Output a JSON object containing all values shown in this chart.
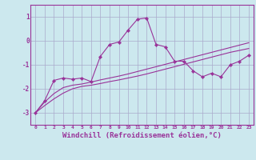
{
  "background_color": "#cce8ee",
  "grid_color": "#aaaacc",
  "line_color": "#993399",
  "xlabel": "Windchill (Refroidissement éolien,°C)",
  "xlabel_fontsize": 6.5,
  "xtick_labels": [
    "0",
    "1",
    "2",
    "3",
    "4",
    "5",
    "6",
    "7",
    "8",
    "9",
    "10",
    "11",
    "12",
    "13",
    "14",
    "15",
    "16",
    "17",
    "18",
    "19",
    "20",
    "21",
    "22",
    "23"
  ],
  "ytick_labels": [
    "1",
    "0",
    "-1",
    "-2",
    "-3"
  ],
  "ytick_values": [
    1,
    0,
    -1,
    -2,
    -3
  ],
  "ylim": [
    -3.5,
    1.5
  ],
  "xlim": [
    -0.5,
    23.5
  ],
  "line1_x": [
    0,
    1,
    2,
    3,
    4,
    5,
    6,
    7,
    8,
    9,
    10,
    11,
    12,
    13,
    14,
    15,
    16,
    17,
    18,
    19,
    20,
    21,
    22,
    23
  ],
  "line1_y": [
    -3.0,
    -2.5,
    -1.65,
    -1.55,
    -1.6,
    -1.55,
    -1.7,
    -0.65,
    -0.15,
    -0.05,
    0.45,
    0.9,
    0.95,
    -0.15,
    -0.25,
    -0.85,
    -0.85,
    -1.25,
    -1.5,
    -1.35,
    -1.5,
    -1.0,
    -0.85,
    -0.6
  ],
  "line2_x": [
    0,
    1,
    2,
    3,
    4,
    5,
    6,
    7,
    8,
    9,
    10,
    11,
    12,
    13,
    14,
    15,
    16,
    17,
    18,
    19,
    20,
    21,
    22,
    23
  ],
  "line2_y": [
    -3.0,
    -2.55,
    -2.2,
    -1.95,
    -1.85,
    -1.8,
    -1.72,
    -1.63,
    -1.55,
    -1.47,
    -1.38,
    -1.28,
    -1.18,
    -1.08,
    -0.98,
    -0.88,
    -0.78,
    -0.68,
    -0.58,
    -0.48,
    -0.38,
    -0.28,
    -0.18,
    -0.08
  ],
  "line3_x": [
    0,
    1,
    2,
    3,
    4,
    5,
    6,
    7,
    8,
    9,
    10,
    11,
    12,
    13,
    14,
    15,
    16,
    17,
    18,
    19,
    20,
    21,
    22,
    23
  ],
  "line3_y": [
    -3.0,
    -2.7,
    -2.42,
    -2.18,
    -2.0,
    -1.9,
    -1.85,
    -1.78,
    -1.7,
    -1.63,
    -1.55,
    -1.47,
    -1.38,
    -1.28,
    -1.18,
    -1.08,
    -0.98,
    -0.88,
    -0.78,
    -0.68,
    -0.58,
    -0.48,
    -0.4,
    -0.32
  ]
}
